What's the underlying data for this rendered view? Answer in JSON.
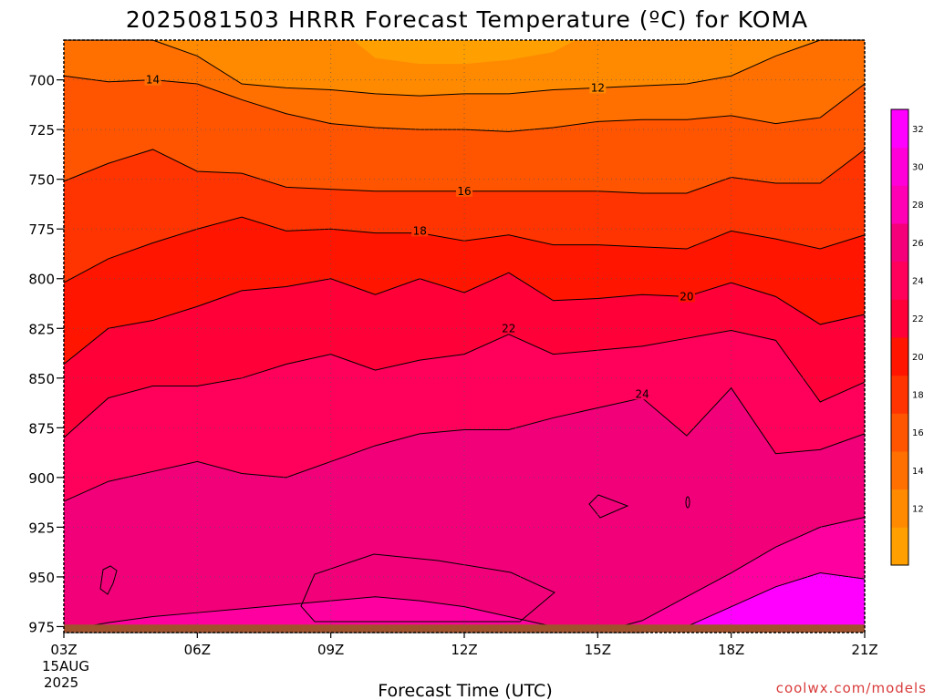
{
  "chart_data": {
    "type": "contour",
    "title": "2025081503 HRRR Forecast Temperature (ºC) for KOMA",
    "xlabel": "Forecast Time (UTC)",
    "ylabel": "",
    "x_ticks": [
      "03Z",
      "06Z",
      "09Z",
      "12Z",
      "15Z",
      "18Z",
      "21Z"
    ],
    "x_date_lines": [
      "15AUG",
      "2025"
    ],
    "y_ticks": [
      700,
      725,
      750,
      775,
      800,
      825,
      850,
      875,
      900,
      925,
      950,
      975
    ],
    "ylim": [
      978,
      680
    ],
    "hours": [
      3,
      4,
      5,
      6,
      7,
      8,
      9,
      10,
      11,
      12,
      13,
      14,
      15,
      16,
      17,
      18,
      19,
      20,
      21
    ],
    "colorbar_levels": [
      10,
      12,
      14,
      16,
      18,
      20,
      22,
      24,
      26,
      28,
      30,
      32
    ],
    "colorbar_colors": [
      "#ffa000",
      "#ff8a00",
      "#ff7000",
      "#ff5500",
      "#ff3400",
      "#ff1500",
      "#ff0038",
      "#ff005a",
      "#f5007a",
      "#ff00b4",
      "#ff00d8",
      "#ff00ff"
    ],
    "contours": [
      {
        "level": 12,
        "label": "12",
        "label_at": [
          15,
          704
        ],
        "pressure": [
          680,
          680,
          680,
          688,
          702,
          704,
          705,
          707,
          708,
          707,
          707,
          705,
          704,
          703,
          702,
          698,
          688,
          680,
          680
        ]
      },
      {
        "level": 14,
        "label": "14",
        "label_at": [
          5,
          700
        ],
        "pressure": [
          698,
          701,
          700,
          702,
          710,
          717,
          722,
          724,
          725,
          725,
          726,
          724,
          721,
          720,
          720,
          718,
          722,
          719,
          702
        ]
      },
      {
        "level": 16,
        "label": "16",
        "label_at": [
          12,
          756
        ],
        "pressure": [
          751,
          742,
          735,
          746,
          747,
          754,
          755,
          756,
          756,
          756,
          756,
          756,
          756,
          757,
          757,
          749,
          752,
          752,
          735
        ]
      },
      {
        "level": 18,
        "label": "18",
        "label_at": [
          11,
          776
        ],
        "pressure": [
          802,
          790,
          782,
          775,
          769,
          776,
          775,
          777,
          777,
          781,
          778,
          783,
          783,
          784,
          785,
          776,
          780,
          785,
          778
        ]
      },
      {
        "level": 20,
        "label": "20",
        "label_at": [
          17,
          809
        ],
        "pressure": [
          843,
          825,
          821,
          814,
          806,
          804,
          800,
          808,
          800,
          807,
          797,
          811,
          810,
          808,
          809,
          802,
          809,
          823,
          818
        ]
      },
      {
        "level": 22,
        "label": "22",
        "label_at": [
          13,
          825
        ],
        "pressure": [
          880,
          860,
          854,
          854,
          850,
          843,
          838,
          846,
          841,
          838,
          828,
          838,
          836,
          834,
          830,
          826,
          831,
          862,
          852
        ]
      },
      {
        "level": 24,
        "label": "24",
        "label_at": [
          16,
          858
        ],
        "pressure": [
          912,
          902,
          897,
          892,
          898,
          900,
          892,
          884,
          878,
          876,
          876,
          870,
          865,
          860,
          879,
          855,
          888,
          886,
          878
        ]
      },
      {
        "level": 26,
        "label": "",
        "label_at": null,
        "pressure": [
          977,
          973,
          970,
          968,
          966,
          964,
          962,
          960,
          962,
          965,
          970,
          975,
          980,
          972,
          960,
          948,
          935,
          925,
          920
        ]
      },
      {
        "level": 28,
        "label": "",
        "label_at": null,
        "pressure": [
          990,
          990,
          990,
          990,
          990,
          990,
          990,
          990,
          990,
          990,
          990,
          990,
          990,
          985,
          975,
          965,
          955,
          948,
          951
        ]
      }
    ]
  },
  "credit": "coolwx.com/models"
}
